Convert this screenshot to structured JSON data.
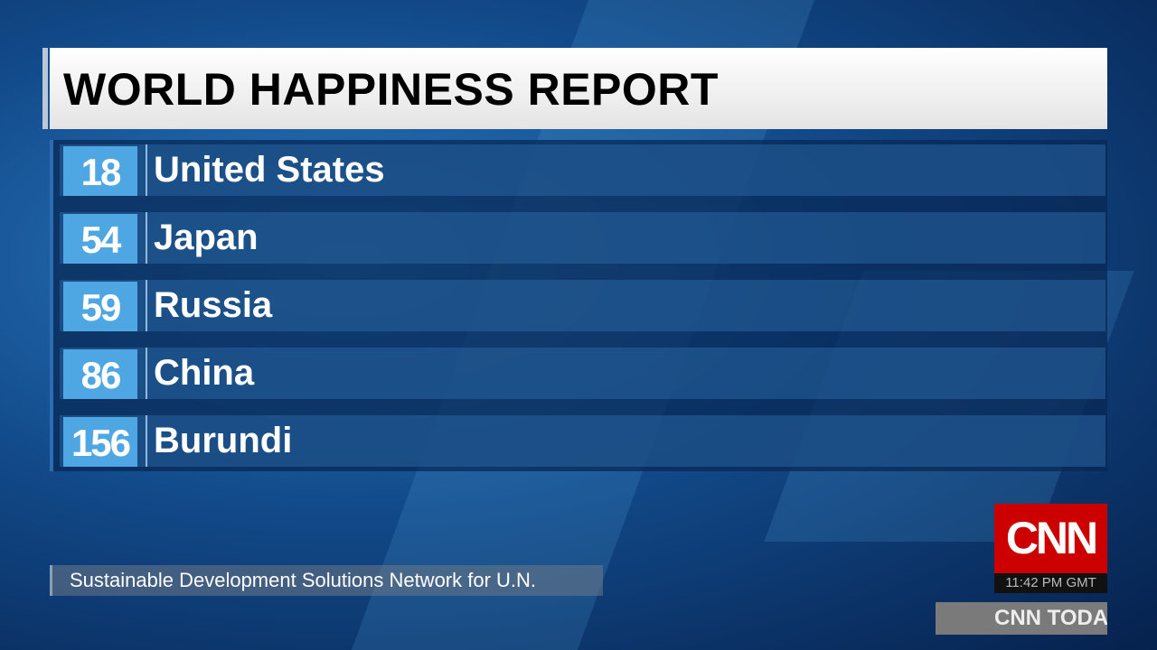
{
  "header": {
    "title": "WORLD HAPPINESS REPORT"
  },
  "table": {
    "rows": [
      {
        "rank": 18,
        "country": "United States"
      },
      {
        "rank": 54,
        "country": "Japan"
      },
      {
        "rank": 59,
        "country": "Russia"
      },
      {
        "rank": 86,
        "country": "China"
      },
      {
        "rank": 156,
        "country": "Burundi"
      }
    ]
  },
  "source": "Sustainable Development Solutions Network for U.N.",
  "logo": {
    "text": "CNN",
    "time": "11:42 PM GMT"
  },
  "ticker": "CNN TODA"
}
